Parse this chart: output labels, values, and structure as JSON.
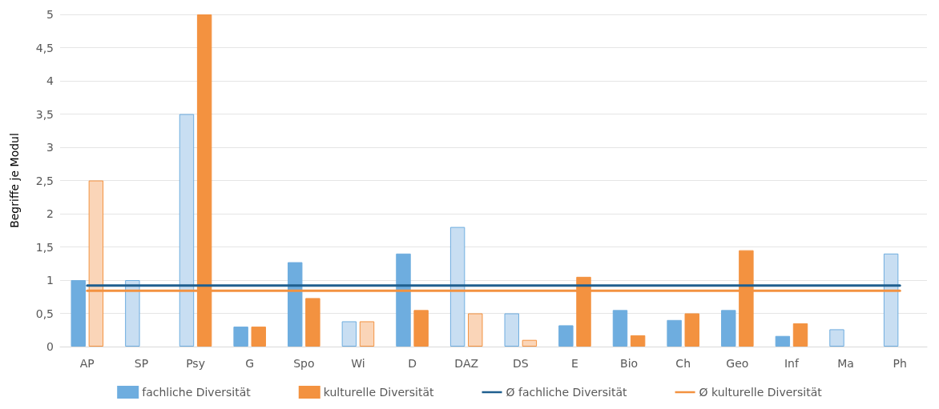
{
  "chart_data": {
    "type": "bar",
    "ylabel": "Begriffe je Modul",
    "categories": [
      "AP",
      "SP",
      "Psy",
      "G",
      "Spo",
      "Wi",
      "D",
      "DAZ",
      "DS",
      "E",
      "Bio",
      "Ch",
      "Geo",
      "Inf",
      "Ma",
      "Ph"
    ],
    "series": [
      {
        "name": "fachliche Diversität",
        "color": "#6eaddf",
        "values": [
          1.0,
          1.0,
          3.5,
          0.3,
          1.27,
          0.38,
          1.4,
          1.8,
          0.5,
          0.32,
          0.55,
          0.4,
          0.55,
          0.16,
          0.26,
          1.4
        ],
        "colors": [
          "#6eaddf",
          "#c8def2",
          "#c8def2",
          "#6eaddf",
          "#6eaddf",
          "#c8def2",
          "#6eaddf",
          "#c8def2",
          "#c8def2",
          "#6eaddf",
          "#6eaddf",
          "#6eaddf",
          "#6eaddf",
          "#6eaddf",
          "#c8def2",
          "#c8def2"
        ]
      },
      {
        "name": "kulturelle Diversität",
        "color": "#f39240",
        "values": [
          2.5,
          0,
          5.0,
          0.3,
          0.73,
          0.38,
          0.55,
          0.5,
          0.1,
          1.05,
          0.17,
          0.5,
          1.45,
          0.35,
          0,
          0
        ],
        "colors": [
          "#fad5b8",
          "#fad5b8",
          "#f39240",
          "#f39240",
          "#f39240",
          "#fad5b8",
          "#f39240",
          "#fad5b8",
          "#fad5b8",
          "#f39240",
          "#f39240",
          "#f39240",
          "#f39240",
          "#f39240",
          "#fad5b8",
          "#fad5b8"
        ]
      },
      {
        "name": "Ø fachliche Diversität",
        "type": "line",
        "color": "#1f5f8f",
        "values": [
          0.92,
          0.92,
          0.92,
          0.92,
          0.92,
          0.92,
          0.92,
          0.92,
          0.92,
          0.92,
          0.92,
          0.92,
          0.92,
          0.92,
          0.92,
          0.92
        ]
      },
      {
        "name": "Ø kulturelle Diversität",
        "type": "line",
        "color": "#f39240",
        "values": [
          0.84,
          0.84,
          0.84,
          0.84,
          0.84,
          0.84,
          0.84,
          0.84,
          0.84,
          0.84,
          0.84,
          0.84,
          0.84,
          0.84,
          0.84,
          0.84
        ]
      }
    ],
    "ylim": [
      0,
      5
    ],
    "yticks": [
      0,
      {
        "value": 0.5,
        "label": "0,5"
      },
      1,
      {
        "value": 1.5,
        "label": "1,5"
      },
      2,
      {
        "value": 2.5,
        "label": "2,5"
      },
      3,
      {
        "value": 3.5,
        "label": "3,5"
      },
      4,
      {
        "value": 4.5,
        "label": "4,5"
      },
      5
    ],
    "grid": "y",
    "legend": "bottom",
    "marker": "none",
    "line_style": "solid"
  }
}
